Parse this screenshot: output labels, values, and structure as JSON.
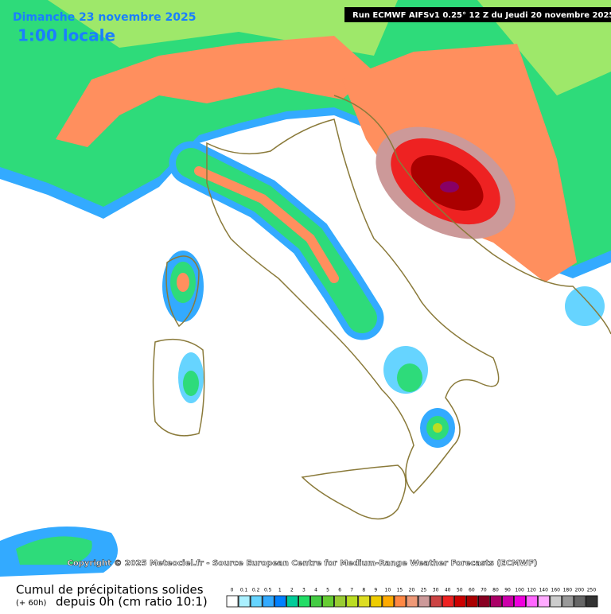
{
  "header": {
    "date": "Dimanche 23 novembre 2025",
    "time": "1:00 locale",
    "run": "Run ECMWF AIFSv1 0.25° 12 Z du Jeudi 20 novembre 2025"
  },
  "footer": {
    "copyright": "Copyright © 2025 Meteociel.fr - Source European Centre for Medium-Range Weather Forecasts (ECMWF)",
    "title": "Cumul de précipitations solides",
    "note": "(+ 60h)",
    "subtitle": "depuis 0h (cm ratio 10:1)"
  },
  "legend": [
    {
      "label": "0",
      "color": "#ffffff"
    },
    {
      "label": "0.1",
      "color": "#aaf0ff"
    },
    {
      "label": "0.2",
      "color": "#66d4ff"
    },
    {
      "label": "0.5",
      "color": "#33aaff"
    },
    {
      "label": "1",
      "color": "#0080ff"
    },
    {
      "label": "2",
      "color": "#00cc99"
    },
    {
      "label": "3",
      "color": "#22dd66"
    },
    {
      "label": "4",
      "color": "#44cc44"
    },
    {
      "label": "5",
      "color": "#66cc33"
    },
    {
      "label": "6",
      "color": "#99cc33"
    },
    {
      "label": "7",
      "color": "#bbdd22"
    },
    {
      "label": "8",
      "color": "#dddd22"
    },
    {
      "label": "9",
      "color": "#eecc00"
    },
    {
      "label": "10",
      "color": "#ffaa00"
    },
    {
      "label": "15",
      "color": "#ff8844"
    },
    {
      "label": "20",
      "color": "#ee9977"
    },
    {
      "label": "25",
      "color": "#cc9999"
    },
    {
      "label": "30",
      "color": "#cc4444"
    },
    {
      "label": "40",
      "color": "#ee2222"
    },
    {
      "label": "50",
      "color": "#cc0000"
    },
    {
      "label": "60",
      "color": "#aa0000"
    },
    {
      "label": "70",
      "color": "#880022"
    },
    {
      "label": "80",
      "color": "#aa0066"
    },
    {
      "label": "90",
      "color": "#cc00aa"
    },
    {
      "label": "100",
      "color": "#ee00dd"
    },
    {
      "label": "120",
      "color": "#ff66ff"
    },
    {
      "label": "140",
      "color": "#ffaaff"
    },
    {
      "label": "160",
      "color": "#cccccc"
    },
    {
      "label": "180",
      "color": "#999999"
    },
    {
      "label": "200",
      "color": "#666666"
    },
    {
      "label": "250",
      "color": "#333333"
    }
  ]
}
